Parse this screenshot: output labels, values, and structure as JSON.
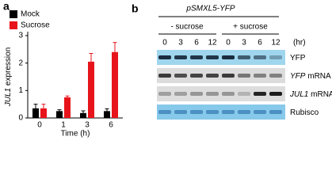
{
  "chart_data": {
    "type": "bar",
    "panel_label": "a",
    "ylabel": [
      "JUL1",
      "expression"
    ],
    "xlabel": "Time (h)",
    "categories": [
      "0",
      "1",
      "3",
      "6"
    ],
    "series": [
      {
        "name": "Mock",
        "color": "#000000",
        "values": [
          0.35,
          0.25,
          0.18,
          0.25
        ],
        "errors": [
          0.15,
          0.05,
          0.08,
          0.08
        ]
      },
      {
        "name": "Sucrose",
        "color": "#e8141b",
        "values": [
          0.35,
          0.75,
          2.05,
          2.4
        ],
        "errors": [
          0.15,
          0.05,
          0.3,
          0.35
        ]
      }
    ],
    "ylim": [
      0,
      3
    ],
    "yticks": [
      0,
      1,
      2,
      3
    ],
    "legend": "upper-left"
  },
  "blot": {
    "panel_label": "b",
    "construct": "pSMXL5-YFP",
    "groups": [
      {
        "name": "- sucrose",
        "lanes": [
          "0",
          "3",
          "6",
          "12"
        ]
      },
      {
        "name": "+ sucrose",
        "lanes": [
          "0",
          "3",
          "6",
          "12"
        ]
      }
    ],
    "unit": "(hr)",
    "rows": [
      {
        "name": "YFP"
      },
      {
        "gene": "YFP",
        "name": "mRNA"
      },
      {
        "gene": "JUL1",
        "name": "mRNA"
      },
      {
        "name": "Rubisco"
      }
    ]
  }
}
